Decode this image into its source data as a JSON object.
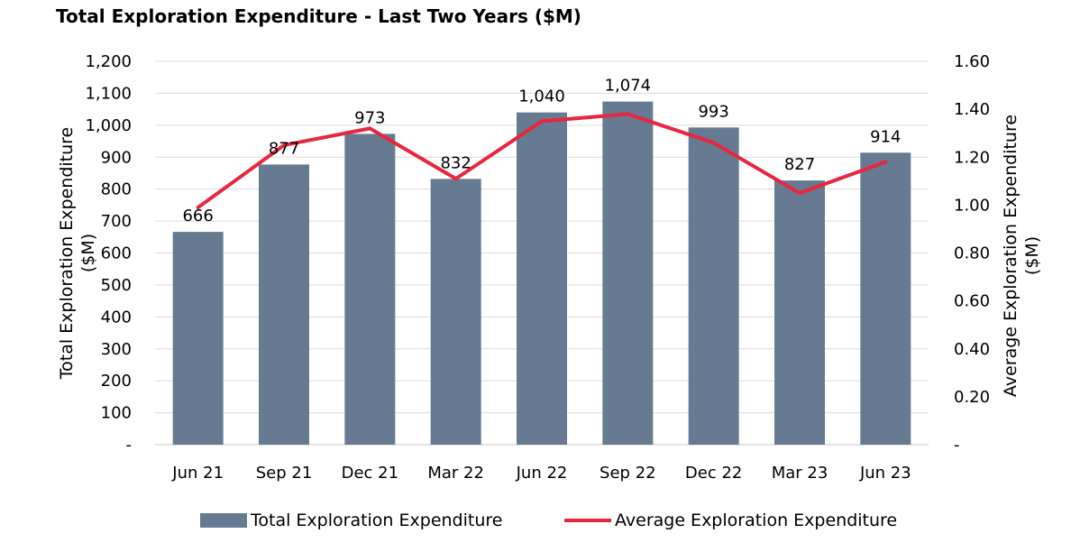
{
  "chart_data": {
    "type": "bar",
    "title": "Total Exploration Expenditure - Last Two Years ($M)",
    "categories": [
      "Jun 21",
      "Sep 21",
      "Dec 21",
      "Mar 22",
      "Jun 22",
      "Sep 22",
      "Dec 22",
      "Mar 23",
      "Jun 23"
    ],
    "series": [
      {
        "name": "Total Exploration Expenditure",
        "type": "bar",
        "axis": "left",
        "color": "#667b91",
        "values": [
          666,
          877,
          973,
          832,
          1040,
          1074,
          993,
          827,
          914
        ],
        "labels": [
          "666",
          "877",
          "973",
          "832",
          "1,040",
          "1,074",
          "993",
          "827",
          "914"
        ]
      },
      {
        "name": "Average Exploration Expenditure",
        "type": "line",
        "axis": "right",
        "color": "#e8263f",
        "values": [
          0.99,
          1.25,
          1.32,
          1.11,
          1.35,
          1.38,
          1.26,
          1.05,
          1.18
        ]
      }
    ],
    "ylabel": "Total Exploration Expenditure ($M)",
    "ylabel_lines": [
      "Total Exploration Expenditure",
      "($M)"
    ],
    "y2label": "Average Exploration Expenditure ($M)",
    "y2label_lines": [
      "Average Exploration Expenditure",
      "($M)"
    ],
    "ylim": [
      0,
      1200
    ],
    "y2lim": [
      0,
      1.6
    ],
    "yticks": [
      0,
      100,
      200,
      300,
      400,
      500,
      600,
      700,
      800,
      900,
      1000,
      1100,
      1200
    ],
    "ytick_labels": [
      "-",
      "100",
      "200",
      "300",
      "400",
      "500",
      "600",
      "700",
      "800",
      "900",
      "1,000",
      "1,100",
      "1,200"
    ],
    "y2ticks": [
      0,
      0.2,
      0.4,
      0.6,
      0.8,
      1.0,
      1.2,
      1.4,
      1.6
    ],
    "y2tick_labels": [
      "-",
      "0.20",
      "0.40",
      "0.60",
      "0.80",
      "1.00",
      "1.20",
      "1.40",
      "1.60"
    ],
    "grid": true,
    "legend_position": "bottom"
  }
}
